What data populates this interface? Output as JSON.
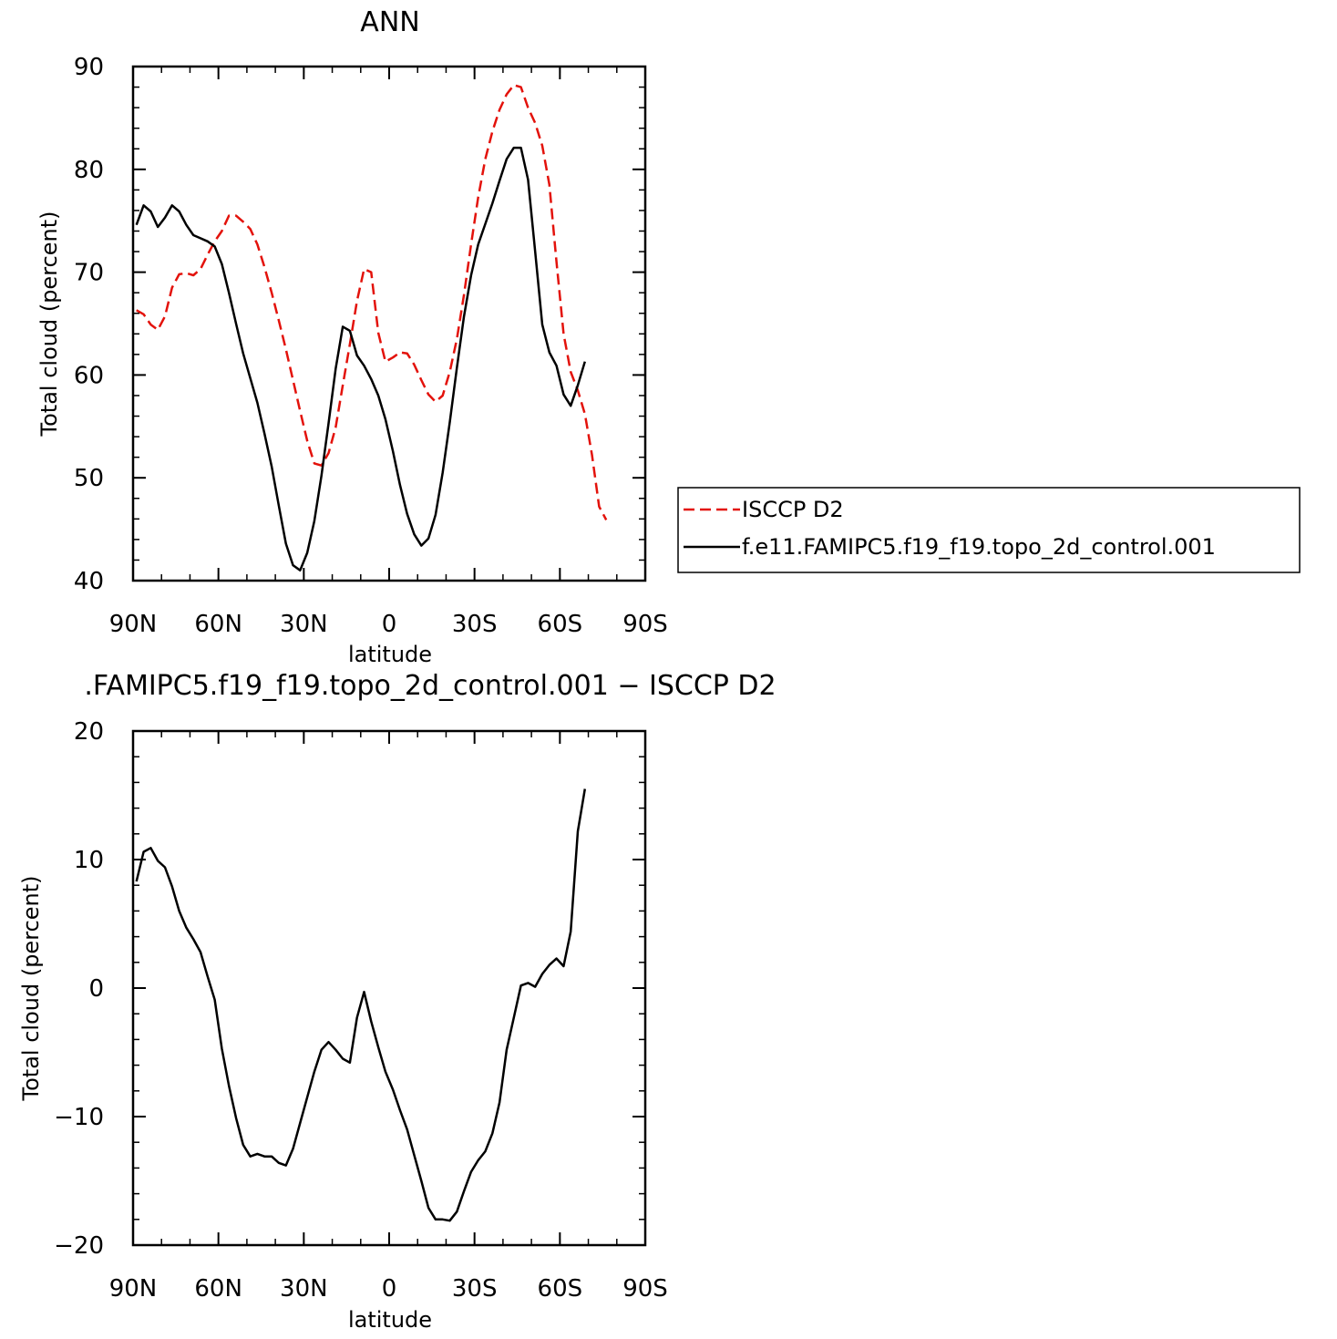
{
  "chart_data": [
    {
      "type": "line",
      "title": "ANN",
      "xlabel": "latitude",
      "ylabel": "Total cloud (percent)",
      "xlim": [
        90,
        -90
      ],
      "ylim": [
        40,
        90
      ],
      "yticks": [
        40,
        50,
        60,
        70,
        80,
        90
      ],
      "xticks": [
        {
          "value": 90,
          "label": "90N"
        },
        {
          "value": 60,
          "label": "60N"
        },
        {
          "value": 30,
          "label": "30N"
        },
        {
          "value": 0,
          "label": "0"
        },
        {
          "value": -30,
          "label": "30S"
        },
        {
          "value": -60,
          "label": "60S"
        },
        {
          "value": -90,
          "label": "90S"
        }
      ],
      "legend_position": "right",
      "series": [
        {
          "name": "ISCCP D2",
          "color": "#e3120b",
          "dash": "dashed",
          "points": [
            [
              88.8,
              66.3
            ],
            [
              86.3,
              65.9
            ],
            [
              83.8,
              64.9
            ],
            [
              81.3,
              64.4
            ],
            [
              78.8,
              65.7
            ],
            [
              76.3,
              68.5
            ],
            [
              73.8,
              69.8
            ],
            [
              71.3,
              69.9
            ],
            [
              68.8,
              69.7
            ],
            [
              66.3,
              70.3
            ],
            [
              63.8,
              71.7
            ],
            [
              61.3,
              73.0
            ],
            [
              58.8,
              74.0
            ],
            [
              56.3,
              75.5
            ],
            [
              53.8,
              75.5
            ],
            [
              51.3,
              74.9
            ],
            [
              48.8,
              74.2
            ],
            [
              46.3,
              72.7
            ],
            [
              43.8,
              70.5
            ],
            [
              41.3,
              68.0
            ],
            [
              38.8,
              65.3
            ],
            [
              36.3,
              62.5
            ],
            [
              33.8,
              59.5
            ],
            [
              31.3,
              56.5
            ],
            [
              28.8,
              53.6
            ],
            [
              26.3,
              51.4
            ],
            [
              23.8,
              51.2
            ],
            [
              21.3,
              52.4
            ],
            [
              18.8,
              54.9
            ],
            [
              16.3,
              59.0
            ],
            [
              13.8,
              63.0
            ],
            [
              11.3,
              67.2
            ],
            [
              8.8,
              70.3
            ],
            [
              6.3,
              70.0
            ],
            [
              3.8,
              64.1
            ],
            [
              1.3,
              61.3
            ],
            [
              -1.3,
              61.7
            ],
            [
              -3.8,
              62.2
            ],
            [
              -6.3,
              62.1
            ],
            [
              -8.8,
              61.0
            ],
            [
              -11.3,
              59.5
            ],
            [
              -13.8,
              58.1
            ],
            [
              -16.3,
              57.4
            ],
            [
              -18.8,
              58.0
            ],
            [
              -21.3,
              60.3
            ],
            [
              -23.8,
              63.5
            ],
            [
              -26.3,
              67.8
            ],
            [
              -28.8,
              72.7
            ],
            [
              -31.3,
              77.3
            ],
            [
              -33.8,
              81.0
            ],
            [
              -36.3,
              83.7
            ],
            [
              -38.8,
              85.8
            ],
            [
              -41.3,
              87.3
            ],
            [
              -43.8,
              88.2
            ],
            [
              -46.3,
              88.0
            ],
            [
              -48.8,
              86.0
            ],
            [
              -51.3,
              84.5
            ],
            [
              -53.8,
              82.3
            ],
            [
              -56.3,
              78.5
            ],
            [
              -58.8,
              71.0
            ],
            [
              -61.3,
              64.0
            ],
            [
              -63.8,
              60.3
            ],
            [
              -66.3,
              58.5
            ],
            [
              -68.8,
              56.2
            ],
            [
              -71.3,
              52.2
            ],
            [
              -73.8,
              47.2
            ],
            [
              -76.3,
              45.9
            ]
          ]
        },
        {
          "name": "f.e11.FAMIPC5.f19_f19.topo_2d_control.001",
          "color": "#000000",
          "dash": "solid",
          "points": [
            [
              88.8,
              74.6
            ],
            [
              86.3,
              76.5
            ],
            [
              83.8,
              75.9
            ],
            [
              81.3,
              74.4
            ],
            [
              78.8,
              75.3
            ],
            [
              76.3,
              76.5
            ],
            [
              73.8,
              75.9
            ],
            [
              71.3,
              74.6
            ],
            [
              68.8,
              73.6
            ],
            [
              66.3,
              73.3
            ],
            [
              63.8,
              73.0
            ],
            [
              61.3,
              72.5
            ],
            [
              58.8,
              70.8
            ],
            [
              56.3,
              68.0
            ],
            [
              53.8,
              65.0
            ],
            [
              51.3,
              62.1
            ],
            [
              48.8,
              59.7
            ],
            [
              46.3,
              57.3
            ],
            [
              43.8,
              54.3
            ],
            [
              41.3,
              51.1
            ],
            [
              38.8,
              47.3
            ],
            [
              36.3,
              43.6
            ],
            [
              33.8,
              41.5
            ],
            [
              31.3,
              41.0
            ],
            [
              28.8,
              42.7
            ],
            [
              26.3,
              45.8
            ],
            [
              23.8,
              50.2
            ],
            [
              21.3,
              55.3
            ],
            [
              18.8,
              60.6
            ],
            [
              16.3,
              64.7
            ],
            [
              13.8,
              64.3
            ],
            [
              11.3,
              61.9
            ],
            [
              8.8,
              60.9
            ],
            [
              6.3,
              59.6
            ],
            [
              3.8,
              58.0
            ],
            [
              1.3,
              55.7
            ],
            [
              -1.3,
              52.6
            ],
            [
              -3.8,
              49.3
            ],
            [
              -6.3,
              46.5
            ],
            [
              -8.8,
              44.5
            ],
            [
              -11.3,
              43.4
            ],
            [
              -13.8,
              44.1
            ],
            [
              -16.3,
              46.4
            ],
            [
              -18.8,
              50.5
            ],
            [
              -21.3,
              55.4
            ],
            [
              -23.8,
              60.7
            ],
            [
              -26.3,
              65.7
            ],
            [
              -28.8,
              69.7
            ],
            [
              -31.3,
              72.7
            ],
            [
              -33.8,
              74.7
            ],
            [
              -36.3,
              76.7
            ],
            [
              -38.8,
              78.9
            ],
            [
              -41.3,
              81.0
            ],
            [
              -43.8,
              82.1
            ],
            [
              -46.3,
              82.1
            ],
            [
              -48.8,
              79.0
            ],
            [
              -51.3,
              72.0
            ],
            [
              -53.8,
              64.9
            ],
            [
              -56.3,
              62.2
            ],
            [
              -58.8,
              60.9
            ],
            [
              -61.3,
              58.1
            ],
            [
              -63.8,
              57.0
            ],
            [
              -66.3,
              59.0
            ],
            [
              -68.8,
              61.3
            ]
          ]
        }
      ]
    },
    {
      "type": "line",
      "title": ".FAMIPC5.f19_f19.topo_2d_control.001 − ISCCP D2",
      "xlabel": "latitude",
      "ylabel": "Total cloud (percent)",
      "xlim": [
        90,
        -90
      ],
      "ylim": [
        -20,
        20
      ],
      "yticks": [
        -20,
        -10,
        0,
        10,
        20
      ],
      "ytick_labels": [
        "−20",
        "−10",
        "0",
        "10",
        "20"
      ],
      "xticks": [
        {
          "value": 90,
          "label": "90N"
        },
        {
          "value": 60,
          "label": "60N"
        },
        {
          "value": 30,
          "label": "30N"
        },
        {
          "value": 0,
          "label": "0"
        },
        {
          "value": -30,
          "label": "30S"
        },
        {
          "value": -60,
          "label": "60S"
        },
        {
          "value": -90,
          "label": "90S"
        }
      ],
      "series": [
        {
          "color": "#000000",
          "dash": "solid",
          "points": [
            [
              88.8,
              8.3
            ],
            [
              86.3,
              10.6
            ],
            [
              83.8,
              10.9
            ],
            [
              81.3,
              9.9
            ],
            [
              78.8,
              9.4
            ],
            [
              76.3,
              7.9
            ],
            [
              73.8,
              6.0
            ],
            [
              71.3,
              4.7
            ],
            [
              68.8,
              3.8
            ],
            [
              66.3,
              2.8
            ],
            [
              63.8,
              0.9
            ],
            [
              61.3,
              -0.9
            ],
            [
              58.8,
              -4.7
            ],
            [
              56.3,
              -7.6
            ],
            [
              53.8,
              -10.1
            ],
            [
              51.3,
              -12.2
            ],
            [
              48.8,
              -13.1
            ],
            [
              46.3,
              -12.9
            ],
            [
              43.8,
              -13.1
            ],
            [
              41.3,
              -13.1
            ],
            [
              38.8,
              -13.6
            ],
            [
              36.3,
              -13.8
            ],
            [
              33.8,
              -12.5
            ],
            [
              31.3,
              -10.5
            ],
            [
              28.8,
              -8.5
            ],
            [
              26.3,
              -6.5
            ],
            [
              23.8,
              -4.8
            ],
            [
              21.3,
              -4.2
            ],
            [
              18.8,
              -4.8
            ],
            [
              16.3,
              -5.5
            ],
            [
              13.8,
              -5.8
            ],
            [
              11.3,
              -2.3
            ],
            [
              8.8,
              -0.3
            ],
            [
              6.3,
              -2.6
            ],
            [
              3.8,
              -4.6
            ],
            [
              1.3,
              -6.5
            ],
            [
              -1.3,
              -7.9
            ],
            [
              -3.8,
              -9.5
            ],
            [
              -6.3,
              -11.0
            ],
            [
              -8.8,
              -13.0
            ],
            [
              -11.3,
              -15.0
            ],
            [
              -13.8,
              -17.1
            ],
            [
              -16.3,
              -18.0
            ],
            [
              -18.8,
              -18.0
            ],
            [
              -21.3,
              -18.1
            ],
            [
              -23.8,
              -17.4
            ],
            [
              -26.3,
              -15.8
            ],
            [
              -28.8,
              -14.3
            ],
            [
              -31.3,
              -13.4
            ],
            [
              -33.8,
              -12.7
            ],
            [
              -36.3,
              -11.3
            ],
            [
              -38.8,
              -8.9
            ],
            [
              -41.3,
              -4.8
            ],
            [
              -43.8,
              -2.3
            ],
            [
              -46.3,
              0.2
            ],
            [
              -48.8,
              0.4
            ],
            [
              -51.3,
              0.1
            ],
            [
              -53.8,
              1.1
            ],
            [
              -56.3,
              1.8
            ],
            [
              -58.8,
              2.3
            ],
            [
              -61.3,
              1.7
            ],
            [
              -63.8,
              4.4
            ],
            [
              -66.3,
              12.2
            ],
            [
              -68.8,
              15.5
            ]
          ]
        }
      ]
    }
  ]
}
